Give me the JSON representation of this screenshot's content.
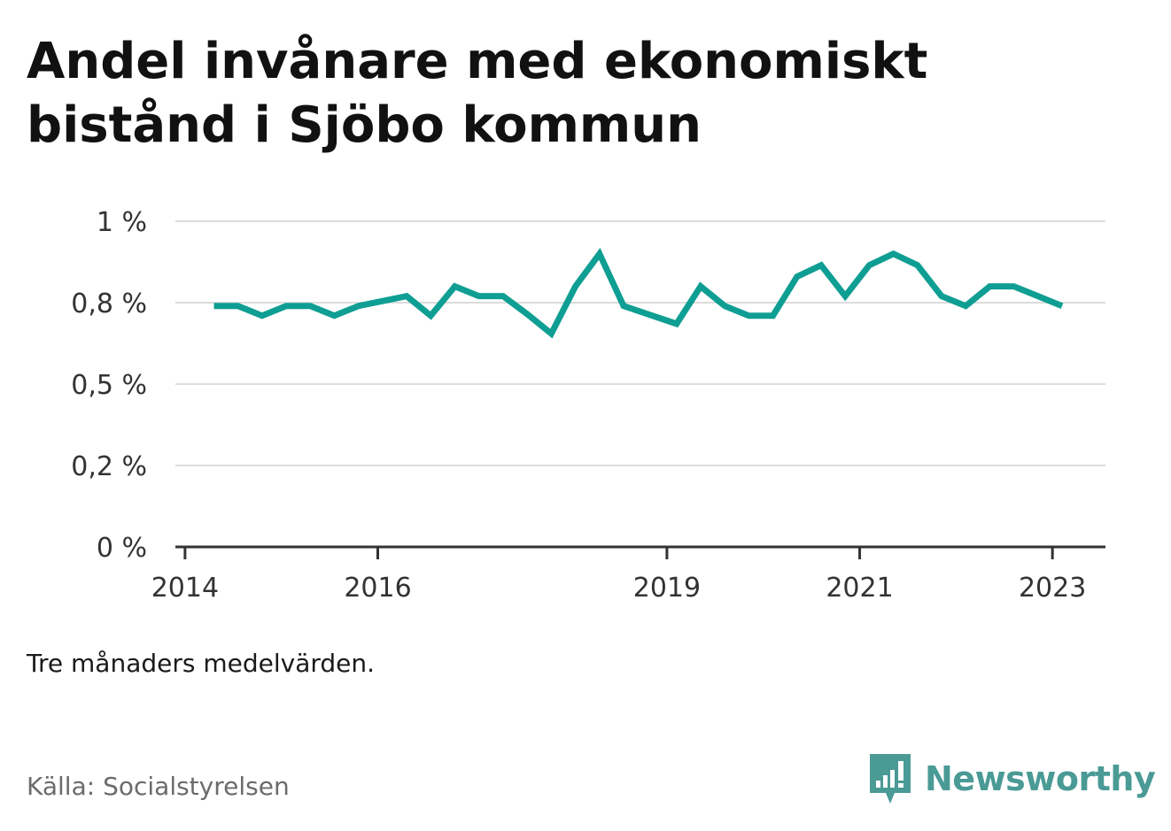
{
  "title": "Andel invånare med ekonomiskt bistånd i Sjöbo kommun",
  "note": "Tre månaders medelvärden.",
  "source": "Källa: Socialstyrelsen",
  "brand": {
    "name": "Newsworthy",
    "icon": "newsworthy-logo-icon",
    "color": "#4a9a96"
  },
  "chart_data": {
    "type": "line",
    "grid": true,
    "ylim": [
      0,
      1
    ],
    "y_ticks": [
      {
        "value": 0,
        "label": "0 %"
      },
      {
        "value": 0.25,
        "label": "0,2 %"
      },
      {
        "value": 0.5,
        "label": "0,5 %"
      },
      {
        "value": 0.75,
        "label": "0,8 %"
      },
      {
        "value": 1,
        "label": "1 %"
      }
    ],
    "x_ticks": [
      {
        "value": 2014,
        "label": "2014"
      },
      {
        "value": 2016,
        "label": "2016"
      },
      {
        "value": 2019,
        "label": "2019"
      },
      {
        "value": 2021,
        "label": "2021"
      },
      {
        "value": 2023,
        "label": "2023"
      }
    ],
    "xlim": [
      2013.9,
      2023.55
    ],
    "line_color": "#0f9e93",
    "series": [
      {
        "points": [
          [
            2014.3,
            0.74
          ],
          [
            2014.55,
            0.74
          ],
          [
            2014.8,
            0.71
          ],
          [
            2015.05,
            0.74
          ],
          [
            2015.3,
            0.74
          ],
          [
            2015.55,
            0.71
          ],
          [
            2015.8,
            0.74
          ],
          [
            2016.05,
            0.755
          ],
          [
            2016.3,
            0.77
          ],
          [
            2016.55,
            0.71
          ],
          [
            2016.8,
            0.8
          ],
          [
            2017.05,
            0.77
          ],
          [
            2017.3,
            0.77
          ],
          [
            2017.55,
            0.715
          ],
          [
            2017.8,
            0.655
          ],
          [
            2018.05,
            0.8
          ],
          [
            2018.3,
            0.9
          ],
          [
            2018.55,
            0.74
          ],
          [
            2018.8,
            0.715
          ],
          [
            2019.1,
            0.685
          ],
          [
            2019.35,
            0.8
          ],
          [
            2019.6,
            0.74
          ],
          [
            2019.85,
            0.71
          ],
          [
            2020.1,
            0.71
          ],
          [
            2020.35,
            0.83
          ],
          [
            2020.6,
            0.865
          ],
          [
            2020.85,
            0.77
          ],
          [
            2021.1,
            0.865
          ],
          [
            2021.35,
            0.9
          ],
          [
            2021.6,
            0.865
          ],
          [
            2021.85,
            0.77
          ],
          [
            2022.1,
            0.74
          ],
          [
            2022.35,
            0.8
          ],
          [
            2022.6,
            0.8
          ],
          [
            2022.85,
            0.77
          ],
          [
            2023.1,
            0.74
          ]
        ]
      }
    ]
  }
}
